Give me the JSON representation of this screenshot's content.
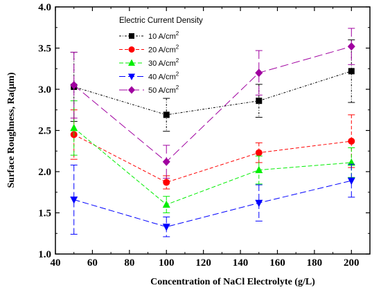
{
  "chart_data": {
    "type": "line",
    "xlabel": "Concentration of NaCl Electrolyte (g/L)",
    "ylabel": "Surface Roughness, Ra(μm)",
    "xlim": [
      40,
      210
    ],
    "ylim": [
      1.0,
      4.0
    ],
    "x_ticks": [
      "40",
      "60",
      "80",
      "100",
      "120",
      "140",
      "160",
      "180",
      "200"
    ],
    "y_ticks": [
      "1.0",
      "1.5",
      "2.0",
      "2.5",
      "3.0",
      "3.5",
      "4.0"
    ],
    "x": [
      50,
      100,
      150,
      200
    ],
    "legend_title": "Electric Current Density",
    "legend_position": "top-center",
    "grid": false,
    "series": [
      {
        "name": "10 A/cm",
        "superscript": "2",
        "color": "#000000",
        "marker": "square",
        "dash": "3 2 1 2",
        "values": [
          3.03,
          2.69,
          2.86,
          3.22
        ],
        "errors": [
          0.42,
          0.2,
          0.2,
          0.38
        ]
      },
      {
        "name": "20 A/cm",
        "superscript": "2",
        "color": "#ff0000",
        "marker": "circle",
        "dash": "5 3",
        "values": [
          2.45,
          1.87,
          2.23,
          2.37
        ],
        "errors": [
          0.3,
          0.08,
          0.12,
          0.32
        ]
      },
      {
        "name": "30 A/cm",
        "superscript": "2",
        "color": "#00ee00",
        "marker": "triangle-up",
        "dash": "6 3",
        "values": [
          2.53,
          1.6,
          2.02,
          2.11
        ],
        "errors": [
          0.33,
          0.1,
          0.17,
          0.18
        ]
      },
      {
        "name": "40 A/cm",
        "superscript": "2",
        "color": "#0000ff",
        "marker": "triangle-down",
        "dash": "9 4",
        "values": [
          1.66,
          1.33,
          1.62,
          1.89
        ],
        "errors": [
          0.42,
          0.12,
          0.22,
          0.2
        ]
      },
      {
        "name": "50 A/cm",
        "superscript": "2",
        "color": "#a000a0",
        "marker": "diamond",
        "dash": "12 5",
        "values": [
          3.05,
          2.12,
          3.2,
          3.52
        ],
        "errors": [
          0.4,
          0.2,
          0.27,
          0.22
        ]
      }
    ]
  }
}
